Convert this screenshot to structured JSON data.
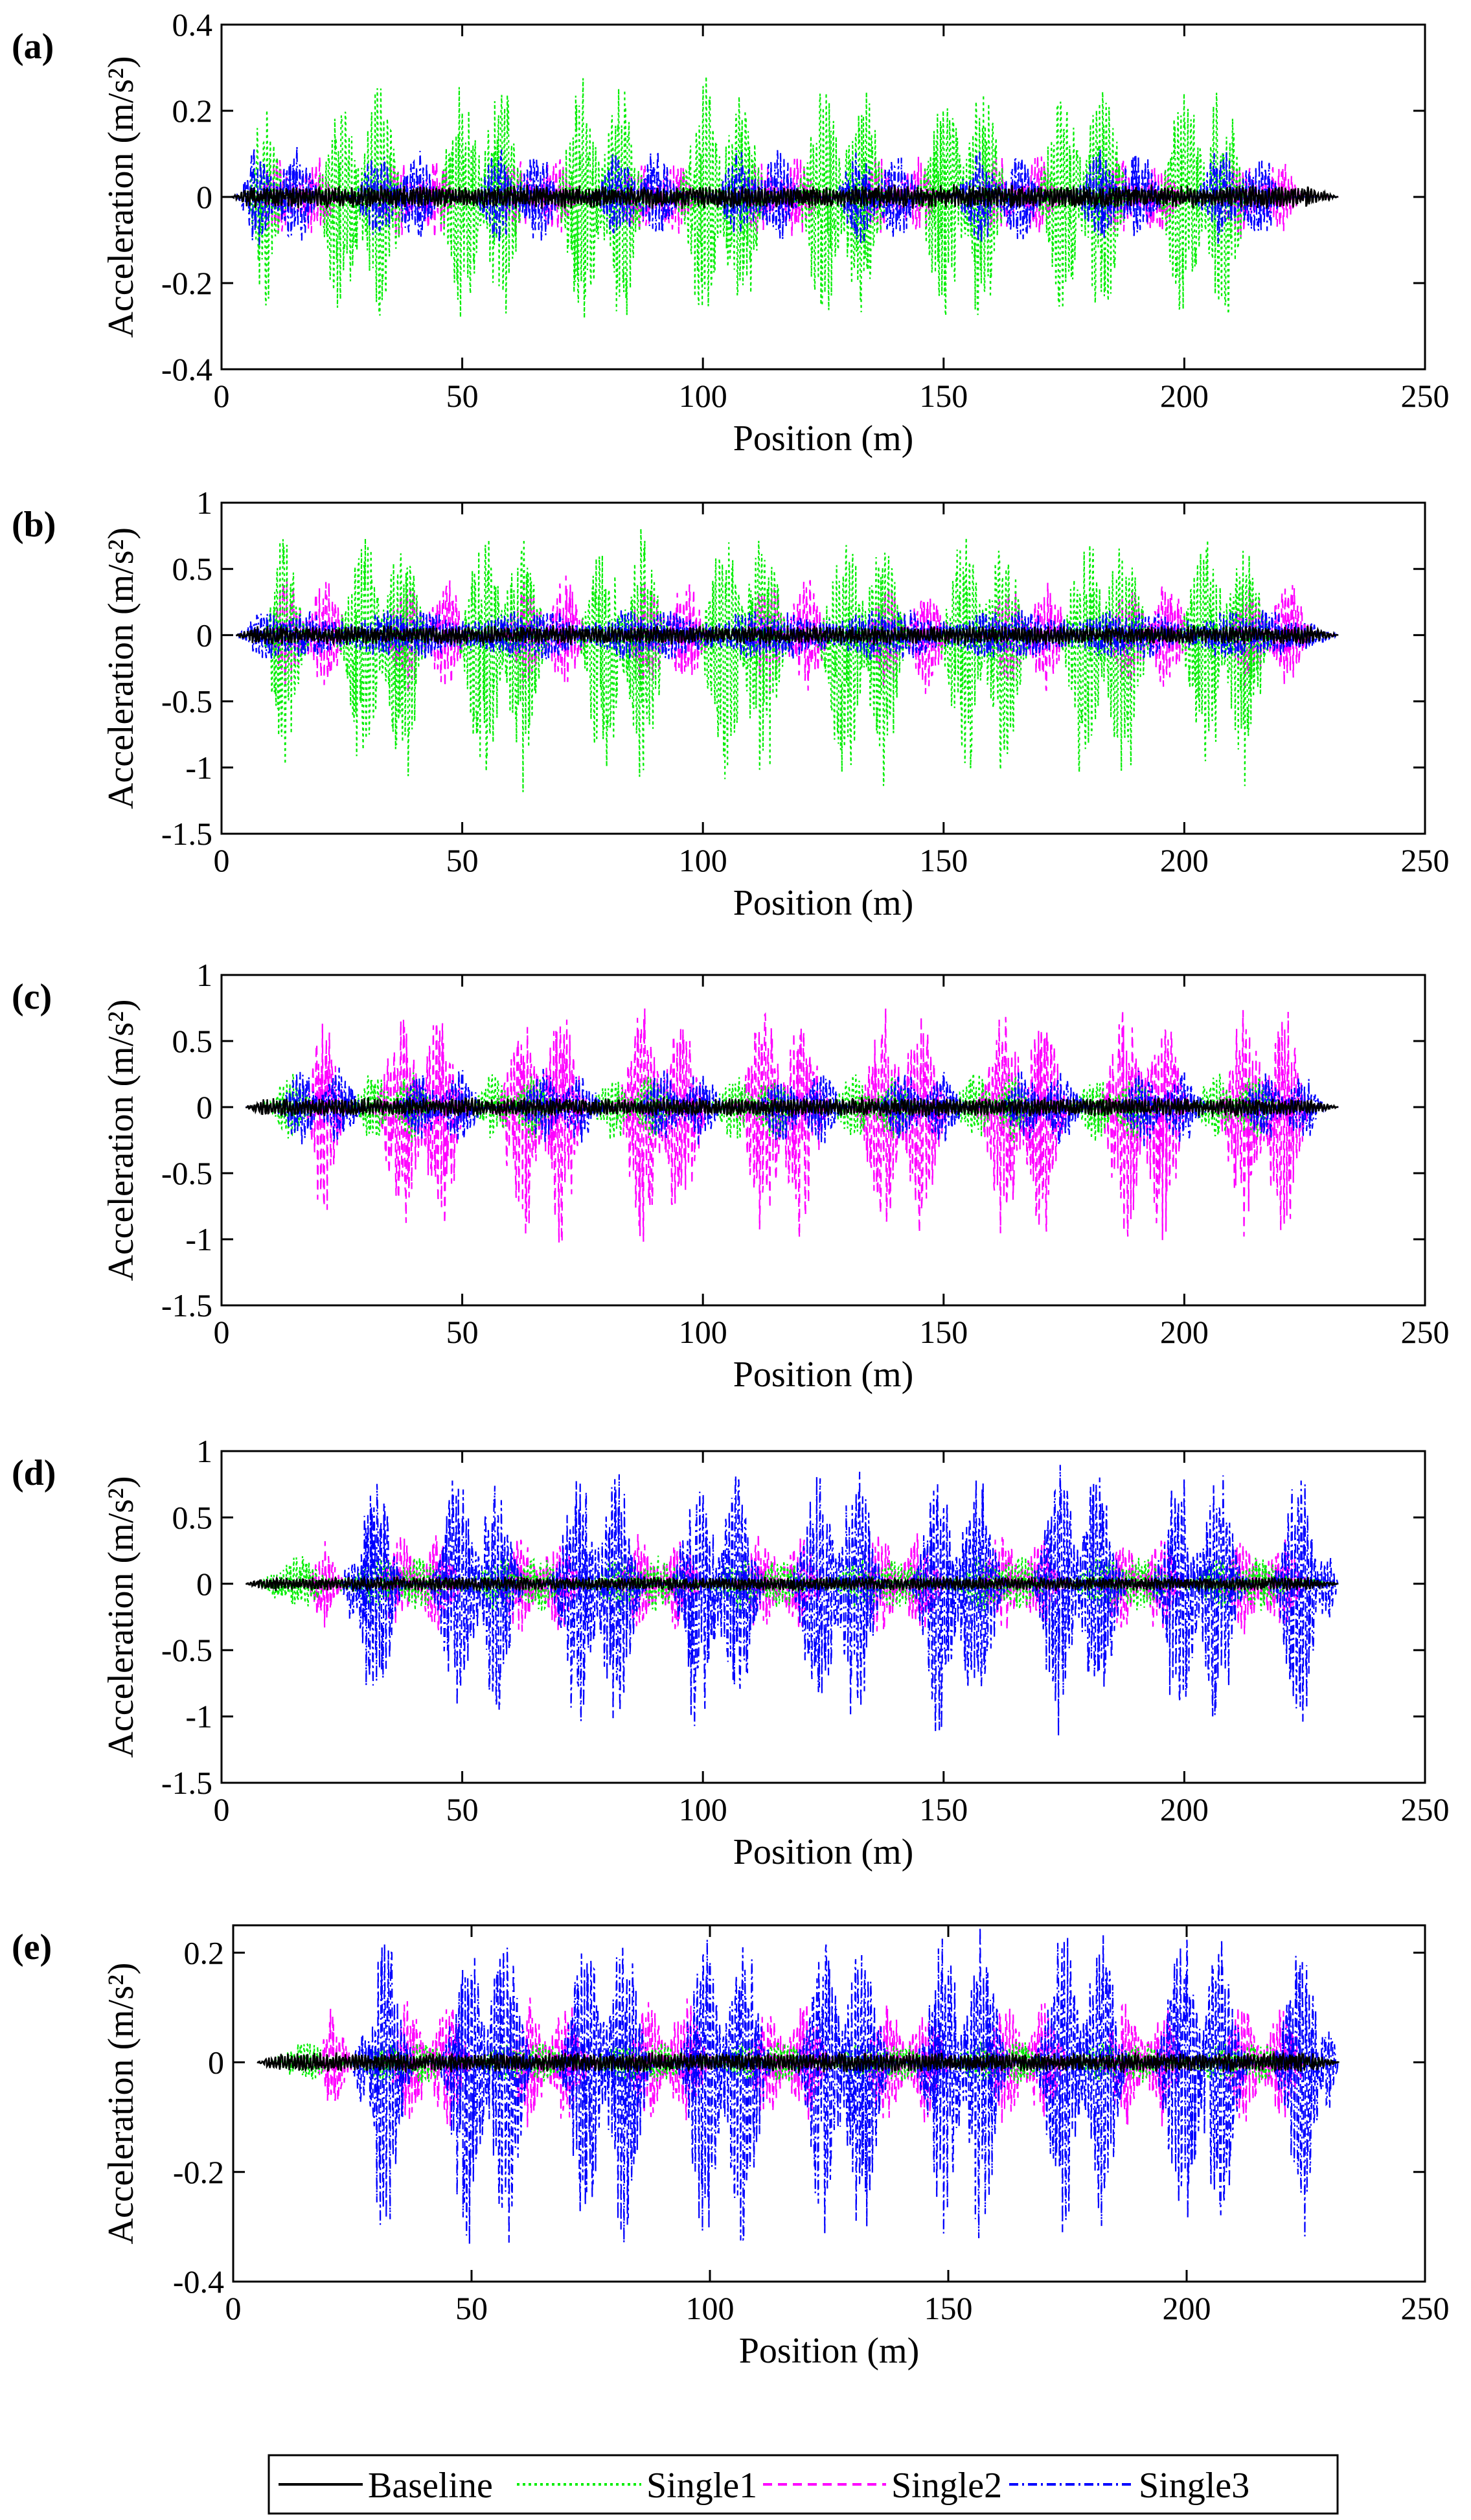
{
  "legend": {
    "entries": [
      {
        "name": "Baseline",
        "color": "#000000",
        "dash": "solid"
      },
      {
        "name": "Single1",
        "color": "#00ee00",
        "dash": "dotted"
      },
      {
        "name": "Single2",
        "color": "#ff00ff",
        "dash": "dashed"
      },
      {
        "name": "Single3",
        "color": "#0000ff",
        "dash": "dashdot"
      }
    ]
  },
  "chart_data": [
    {
      "type": "line",
      "panel_label": "(a)",
      "xlabel": "Position (m)",
      "ylabel": "Acceleration (m/s²)",
      "xlim": [
        0,
        250
      ],
      "ylim": [
        -0.4,
        0.4
      ],
      "xticks": [
        0,
        50,
        100,
        150,
        200,
        250
      ],
      "xtick_labels": [
        "0",
        "50",
        "100",
        "150",
        "200",
        "250"
      ],
      "yticks": [
        -0.4,
        -0.2,
        0,
        0.2,
        0.4
      ],
      "ytick_labels": [
        "-0.4",
        "-0.2",
        "0",
        "0.2",
        "0.4"
      ],
      "x_end": 232,
      "bogie_groups": [
        11.5,
        36.5,
        61.5,
        86.5,
        111.5,
        136.5,
        161.5,
        186.5,
        211.5
      ],
      "series": [
        {
          "name": "Baseline",
          "envelope": [
            -0.03,
            0.03
          ],
          "onset": 2,
          "offset": 0
        },
        {
          "name": "Single1",
          "envelope": [
            -0.32,
            0.29
          ],
          "onset": 5,
          "offset": -7.5
        },
        {
          "name": "Single2",
          "envelope": [
            -0.1,
            0.1
          ],
          "onset": 5,
          "offset": 4
        },
        {
          "name": "Single3",
          "envelope": [
            -0.12,
            0.12
          ],
          "onset": 2,
          "offset": 0
        }
      ]
    },
    {
      "type": "line",
      "panel_label": "(b)",
      "xlabel": "Position (m)",
      "ylabel": "Acceleration (m/s²)",
      "xlim": [
        0,
        250
      ],
      "ylim": [
        -1.5,
        1
      ],
      "xticks": [
        0,
        50,
        100,
        150,
        200,
        250
      ],
      "xtick_labels": [
        "0",
        "50",
        "100",
        "150",
        "200",
        "250"
      ],
      "yticks": [
        -1.5,
        -1,
        -0.5,
        0,
        0.5,
        1
      ],
      "ytick_labels": [
        "-1.5",
        "-1",
        "-0.5",
        "0",
        "0.5",
        "1"
      ],
      "x_end": 232,
      "bogie_groups": [
        13.5,
        38.5,
        63.5,
        88.5,
        113.5,
        138.5,
        163.5,
        188.5,
        213.5
      ],
      "series": [
        {
          "name": "Baseline",
          "envelope": [
            -0.08,
            0.08
          ],
          "onset": 3,
          "offset": 0
        },
        {
          "name": "Single1",
          "envelope": [
            -1.22,
            0.82
          ],
          "onset": 8,
          "offset": -5
        },
        {
          "name": "Single2",
          "envelope": [
            -0.45,
            0.45
          ],
          "onset": 8,
          "offset": 4
        },
        {
          "name": "Single3",
          "envelope": [
            -0.2,
            0.2
          ],
          "onset": 3,
          "offset": 0
        }
      ]
    },
    {
      "type": "line",
      "panel_label": "(c)",
      "xlabel": "Position (m)",
      "ylabel": "Acceleration (m/s²)",
      "xlim": [
        0,
        250
      ],
      "ylim": [
        -1.5,
        1
      ],
      "xticks": [
        0,
        50,
        100,
        150,
        200,
        250
      ],
      "xtick_labels": [
        "0",
        "50",
        "100",
        "150",
        "200",
        "250"
      ],
      "yticks": [
        -1.5,
        -1,
        -0.5,
        0,
        0.5,
        1
      ],
      "ytick_labels": [
        "-1.5",
        "-1",
        "-0.5",
        "0",
        "0.5",
        "1"
      ],
      "x_end": 232,
      "bogie_groups": [
        17.5,
        42.5,
        67.5,
        92.5,
        117.5,
        142.5,
        167.5,
        192.5,
        217.5
      ],
      "series": [
        {
          "name": "Baseline",
          "envelope": [
            -0.08,
            0.08
          ],
          "onset": 5,
          "offset": 0
        },
        {
          "name": "Single1",
          "envelope": [
            -0.27,
            0.27
          ],
          "onset": 8,
          "offset": -7
        },
        {
          "name": "Single2",
          "envelope": [
            -1.08,
            0.8
          ],
          "onset": 17,
          "offset": -1
        },
        {
          "name": "Single3",
          "envelope": [
            -0.3,
            0.3
          ],
          "onset": 5,
          "offset": 3
        }
      ]
    },
    {
      "type": "line",
      "panel_label": "(d)",
      "xlabel": "Position (m)",
      "ylabel": "Acceleration (m/s²)",
      "xlim": [
        0,
        250
      ],
      "ylim": [
        -1.5,
        1
      ],
      "xticks": [
        0,
        50,
        100,
        150,
        200,
        250
      ],
      "xtick_labels": [
        "0",
        "50",
        "100",
        "150",
        "200",
        "250"
      ],
      "yticks": [
        -1.5,
        -1,
        -0.5,
        0,
        0.5,
        1
      ],
      "ytick_labels": [
        "-1.5",
        "-1",
        "-0.5",
        "0",
        "0.5",
        "1"
      ],
      "x_end": 232,
      "bogie_groups": [
        20,
        45,
        70,
        95,
        120,
        145,
        170,
        195,
        220
      ],
      "series": [
        {
          "name": "Baseline",
          "envelope": [
            -0.06,
            0.06
          ],
          "onset": 5,
          "offset": 0
        },
        {
          "name": "Single1",
          "envelope": [
            -0.22,
            0.22
          ],
          "onset": 8,
          "offset": -8
        },
        {
          "name": "Single2",
          "envelope": [
            -0.4,
            0.4
          ],
          "onset": 17,
          "offset": -4
        },
        {
          "name": "Single3",
          "envelope": [
            -1.18,
            0.9
          ],
          "onset": 25,
          "offset": 8
        }
      ]
    },
    {
      "type": "line",
      "panel_label": "(e)",
      "xlabel": "Position (m)",
      "ylabel": "Acceleration (m/s²)",
      "xlim": [
        0,
        250
      ],
      "ylim": [
        -0.4,
        0.25
      ],
      "xticks": [
        0,
        50,
        100,
        150,
        200,
        250
      ],
      "xtick_labels": [
        "0",
        "50",
        "100",
        "150",
        "200",
        "250"
      ],
      "yticks": [
        -0.4,
        -0.2,
        0,
        0.2
      ],
      "ytick_labels": [
        "-0.4",
        "-0.2",
        "0",
        "0.2"
      ],
      "x_end": 232,
      "bogie_groups": [
        20,
        45,
        70,
        95,
        120,
        145,
        170,
        195,
        220
      ],
      "series": [
        {
          "name": "Baseline",
          "envelope": [
            -0.02,
            0.02
          ],
          "onset": 5,
          "offset": 0
        },
        {
          "name": "Single1",
          "envelope": [
            -0.04,
            0.04
          ],
          "onset": 8,
          "offset": -9
        },
        {
          "name": "Single2",
          "envelope": [
            -0.12,
            0.12
          ],
          "onset": 17,
          "offset": -4
        },
        {
          "name": "Single3",
          "envelope": [
            -0.35,
            0.25
          ],
          "onset": 25,
          "offset": 8
        }
      ]
    }
  ]
}
